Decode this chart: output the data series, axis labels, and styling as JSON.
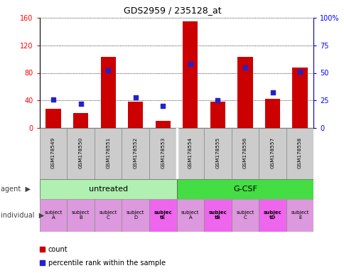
{
  "title": "GDS2959 / 235128_at",
  "samples": [
    "GSM178549",
    "GSM178550",
    "GSM178551",
    "GSM178552",
    "GSM178553",
    "GSM178554",
    "GSM178555",
    "GSM178556",
    "GSM178557",
    "GSM178558"
  ],
  "counts": [
    28,
    22,
    103,
    38,
    10,
    155,
    38,
    103,
    42,
    88
  ],
  "percentile_ranks": [
    26,
    22,
    52,
    28,
    20,
    58,
    25,
    55,
    32,
    51
  ],
  "agent_groups": [
    {
      "label": "untreated",
      "start": 0,
      "end": 5,
      "color": "#b0f0b0"
    },
    {
      "label": "G-CSF",
      "start": 5,
      "end": 10,
      "color": "#44dd44"
    }
  ],
  "indiv_labels": [
    "subject\nA",
    "subject\nB",
    "subject\nC",
    "subject\nD",
    "subjec\ntE",
    "subject\nA",
    "subjec\ntB",
    "subject\nC",
    "subjec\ntD",
    "subject\nE"
  ],
  "indiv_bold": [
    false,
    false,
    false,
    false,
    true,
    false,
    true,
    false,
    true,
    false
  ],
  "indiv_bg_bold": "#ee66ee",
  "indiv_bg_normal": "#dd99dd",
  "ylim_left": [
    0,
    160
  ],
  "ylim_right": [
    0,
    100
  ],
  "yticks_left": [
    0,
    40,
    80,
    120,
    160
  ],
  "ytick_labels_left": [
    "0",
    "40",
    "80",
    "120",
    "160"
  ],
  "yticks_right": [
    0,
    25,
    50,
    75,
    100
  ],
  "ytick_labels_right": [
    "0",
    "25",
    "50",
    "75",
    "100%"
  ],
  "bar_color": "#cc0000",
  "dot_color": "#2222cc",
  "bg_color": "#ffffff",
  "sample_box_color": "#cccccc",
  "agent_label": "agent",
  "individual_label": "individual",
  "legend_count": "count",
  "legend_percentile": "percentile rank within the sample",
  "arrow": "▶"
}
